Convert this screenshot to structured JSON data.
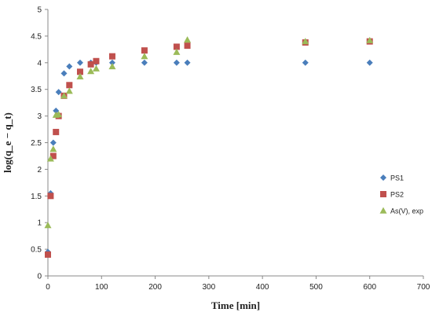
{
  "chart_data": {
    "type": "scatter",
    "title": "",
    "xlabel": "Time [min]",
    "ylabel": "log(q_e − q_t)",
    "xlim": [
      0,
      700
    ],
    "ylim": [
      0,
      5
    ],
    "xticks": [
      0,
      100,
      200,
      300,
      400,
      500,
      600,
      700
    ],
    "yticks": [
      0,
      0.5,
      1,
      1.5,
      2,
      2.5,
      3,
      3.5,
      4,
      4.5,
      5
    ],
    "grid": false,
    "legend_position": "right",
    "series": [
      {
        "name": "PS1",
        "marker": "diamond",
        "color": "#4a7ebb",
        "points": [
          [
            0,
            0.45
          ],
          [
            5,
            1.55
          ],
          [
            10,
            2.5
          ],
          [
            15,
            3.1
          ],
          [
            20,
            3.45
          ],
          [
            30,
            3.8
          ],
          [
            40,
            3.93
          ],
          [
            60,
            4.0
          ],
          [
            80,
            4.0
          ],
          [
            90,
            4.0
          ],
          [
            120,
            4.0
          ],
          [
            180,
            4.0
          ],
          [
            240,
            4.0
          ],
          [
            260,
            4.0
          ],
          [
            480,
            4.0
          ],
          [
            600,
            4.0
          ]
        ]
      },
      {
        "name": "PS2",
        "marker": "square",
        "color": "#c0504d",
        "points": [
          [
            0,
            0.4
          ],
          [
            5,
            1.5
          ],
          [
            10,
            2.25
          ],
          [
            15,
            2.7
          ],
          [
            20,
            3.0
          ],
          [
            30,
            3.38
          ],
          [
            40,
            3.58
          ],
          [
            60,
            3.83
          ],
          [
            80,
            3.97
          ],
          [
            90,
            4.03
          ],
          [
            120,
            4.12
          ],
          [
            180,
            4.23
          ],
          [
            240,
            4.3
          ],
          [
            260,
            4.32
          ],
          [
            480,
            4.38
          ],
          [
            600,
            4.4
          ]
        ]
      },
      {
        "name": "As(V), exp",
        "marker": "triangle",
        "color": "#9bbb59",
        "points": [
          [
            0,
            0.95
          ],
          [
            5,
            2.2
          ],
          [
            10,
            2.38
          ],
          [
            15,
            3.02
          ],
          [
            20,
            3.03
          ],
          [
            30,
            3.38
          ],
          [
            40,
            3.47
          ],
          [
            60,
            3.74
          ],
          [
            80,
            3.84
          ],
          [
            90,
            3.89
          ],
          [
            120,
            3.93
          ],
          [
            180,
            4.12
          ],
          [
            240,
            4.2
          ],
          [
            260,
            4.43
          ],
          [
            480,
            4.4
          ],
          [
            600,
            4.42
          ]
        ]
      }
    ]
  }
}
